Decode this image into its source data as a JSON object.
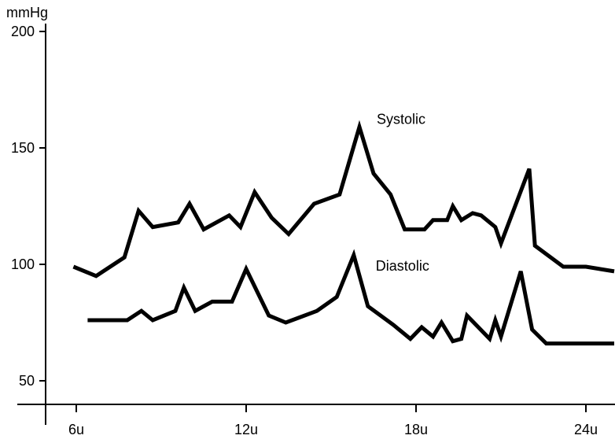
{
  "chart_data": {
    "type": "line",
    "ylabel": "mmHg",
    "xlabel": "",
    "ylim": [
      43,
      210
    ],
    "xlim": [
      5.0,
      25.0
    ],
    "yticks": [
      50,
      100,
      150,
      200
    ],
    "xticks": [
      {
        "value": 6,
        "label": "6u"
      },
      {
        "value": 12,
        "label": "12u"
      },
      {
        "value": 18,
        "label": "18u"
      },
      {
        "value": 24,
        "label": "24u"
      }
    ],
    "grid": false,
    "legend": "inline labels",
    "line_color": "#000000",
    "series": [
      {
        "name": "Systolic",
        "x": [
          5.9,
          6.7,
          7.7,
          8.2,
          8.7,
          9.6,
          10.0,
          10.5,
          11.4,
          11.8,
          12.3,
          12.9,
          13.5,
          14.4,
          15.3,
          16.0,
          16.5,
          17.1,
          17.6,
          18.3,
          18.6,
          19.1,
          19.3,
          19.6,
          20.0,
          20.3,
          20.8,
          21.0,
          22.0,
          22.2,
          23.2,
          24.0,
          25.0
        ],
        "values": [
          99,
          95,
          103,
          123,
          116,
          118,
          126,
          115,
          121,
          116,
          131,
          120,
          113,
          126,
          130,
          159,
          139,
          130,
          115,
          115,
          119,
          119,
          125,
          119,
          122,
          121,
          116,
          109,
          141,
          108,
          99,
          99,
          97
        ]
      },
      {
        "name": "Diastolic",
        "x": [
          6.4,
          7.0,
          7.8,
          8.3,
          8.7,
          9.5,
          9.8,
          10.2,
          10.8,
          11.5,
          12.0,
          12.8,
          13.4,
          14.5,
          15.2,
          15.8,
          16.3,
          17.2,
          17.8,
          18.2,
          18.6,
          18.9,
          19.3,
          19.6,
          19.8,
          20.2,
          20.6,
          20.8,
          21.0,
          21.7,
          22.1,
          22.6,
          23.2,
          25.0
        ],
        "values": [
          76,
          76,
          76,
          80,
          76,
          80,
          90,
          80,
          84,
          84,
          98,
          78,
          75,
          80,
          86,
          104,
          82,
          74,
          68,
          73,
          69,
          75,
          67,
          68,
          78,
          73,
          68,
          76,
          69,
          97,
          72,
          66,
          66,
          66
        ]
      }
    ]
  }
}
